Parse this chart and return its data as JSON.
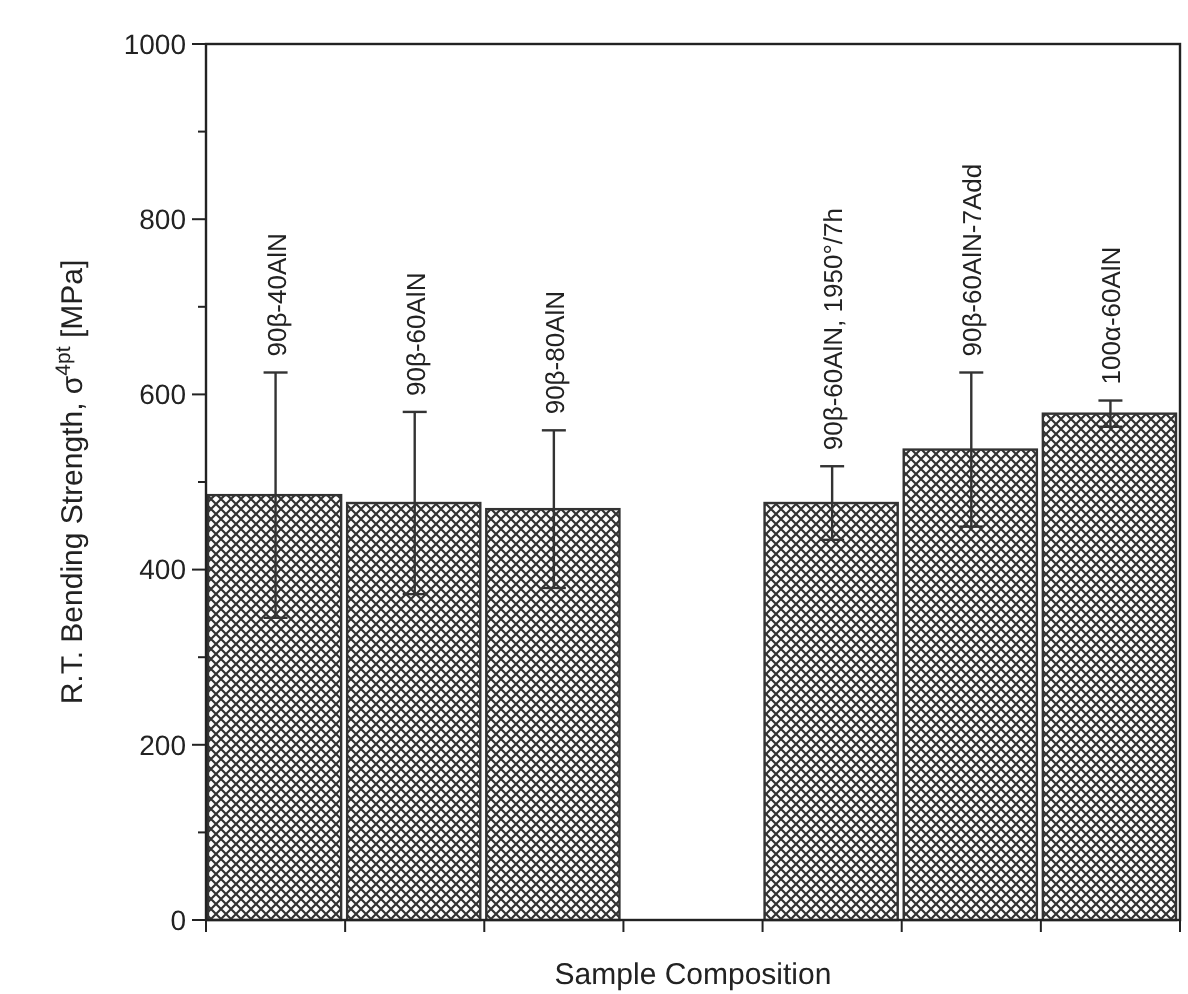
{
  "chart_data": {
    "type": "bar",
    "xlabel": "Sample Composition",
    "ylabel": "R.T. Bending Strength, σ$^{4pt}$ [MPa]",
    "categories": [
      "90β-40AlN",
      "90β-60AlN",
      "90β-80AlN",
      null,
      "90β-60AlN, 1950°/7h",
      "90β-60AlN-7Add",
      "100α-60AlN"
    ],
    "values": [
      485,
      476,
      469,
      null,
      476,
      537,
      578
    ],
    "errors": [
      140,
      104,
      90,
      null,
      42,
      88,
      15
    ],
    "color": "#333333",
    "ylim": [
      0,
      1000
    ],
    "yticks": [
      0,
      {
        "value": 100,
        "label": null
      },
      200,
      {
        "value": 300,
        "label": null
      },
      400,
      {
        "value": 500,
        "label": null
      },
      600,
      {
        "value": 700,
        "label": null
      },
      800,
      {
        "value": 900,
        "label": null
      },
      1000
    ],
    "grid": false
  }
}
